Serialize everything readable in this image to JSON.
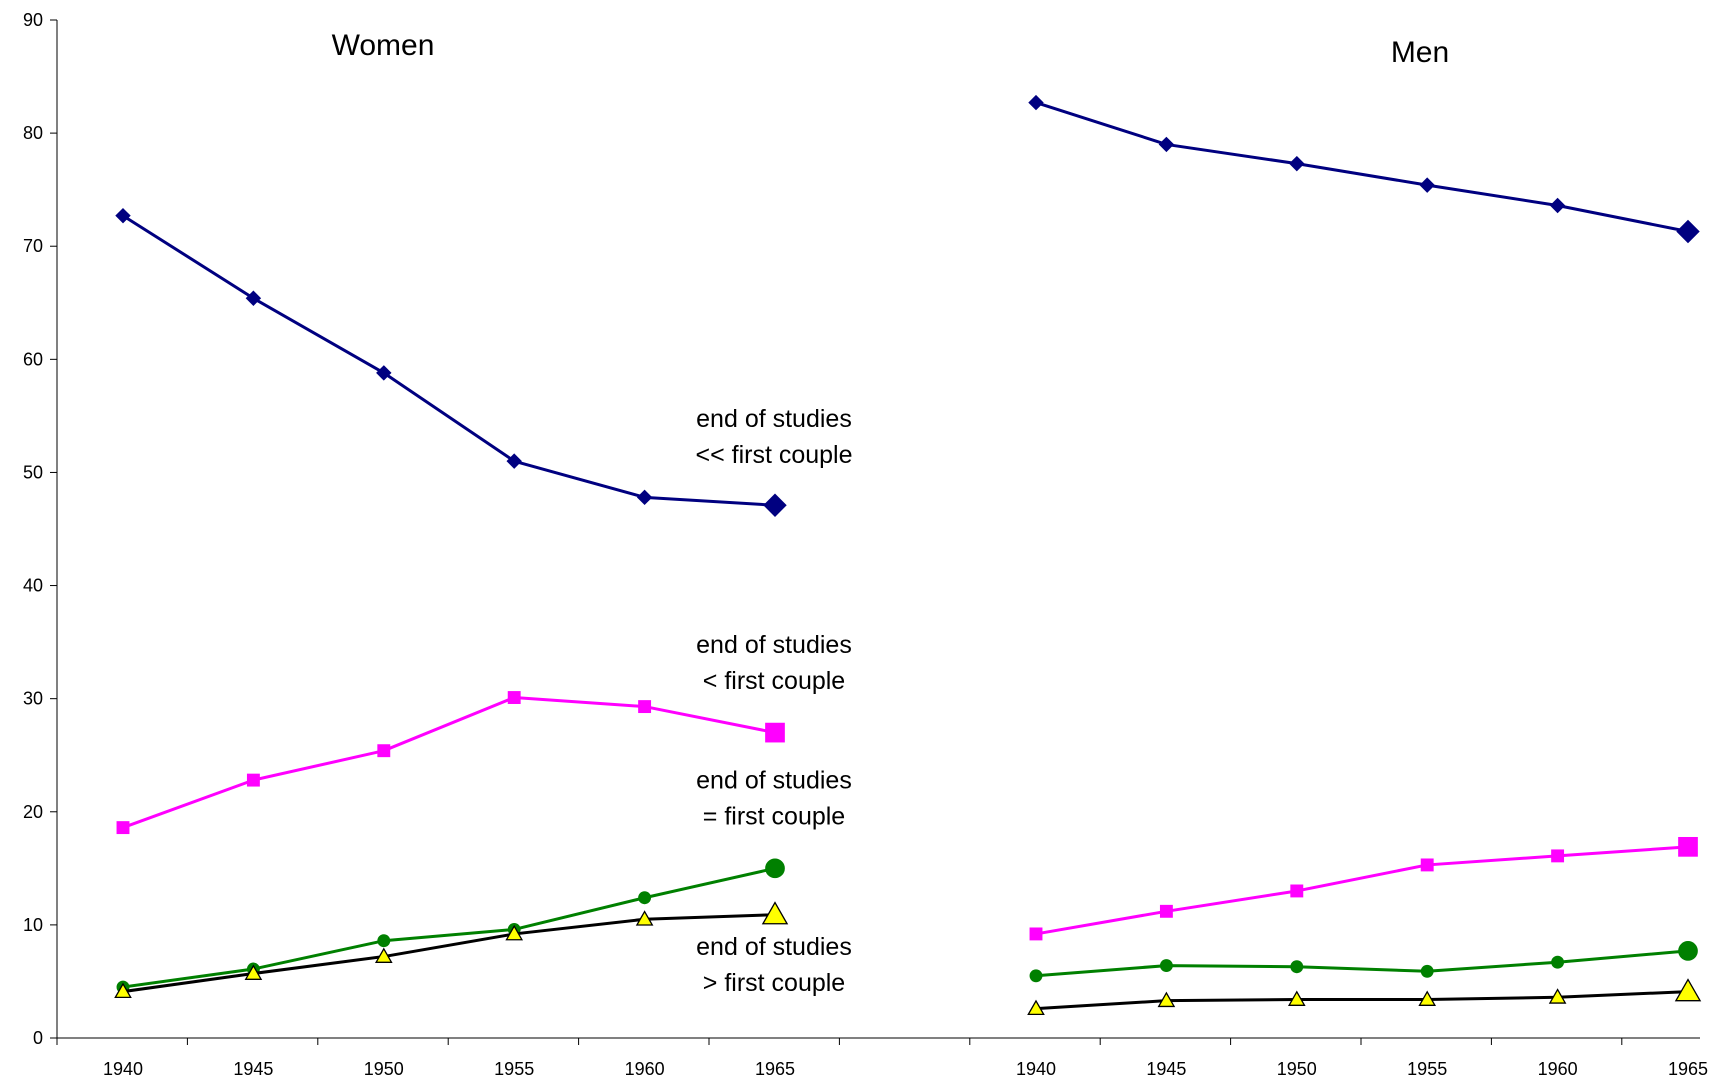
{
  "chart_data": {
    "type": "line",
    "ylim": [
      0,
      90
    ],
    "yticks": [
      0,
      10,
      20,
      30,
      40,
      50,
      60,
      70,
      80,
      90
    ],
    "grid": false,
    "legend": "none",
    "categories": [
      "1940",
      "1945",
      "1950",
      "1955",
      "1960",
      "1965"
    ],
    "panels": [
      {
        "title": "Women",
        "categories": [
          "1940",
          "1945",
          "1950",
          "1955",
          "1960",
          "1965"
        ]
      },
      {
        "title": "Men",
        "categories": [
          "1940",
          "1945",
          "1950",
          "1955",
          "1960",
          "1965"
        ]
      }
    ],
    "series": [
      {
        "color": "#000080",
        "marker": "diamond",
        "marker_fill": "#000080",
        "women": [
          72.7,
          65.4,
          58.8,
          51.0,
          47.8,
          47.1
        ],
        "men": [
          82.7,
          79.0,
          77.3,
          75.4,
          73.6,
          71.3
        ]
      },
      {
        "color": "#ff00ff",
        "marker": "square",
        "marker_fill": "#ff00ff",
        "women": [
          18.6,
          22.8,
          25.4,
          30.1,
          29.3,
          27.0
        ],
        "men": [
          9.2,
          11.2,
          13.0,
          15.3,
          16.1,
          16.9
        ]
      },
      {
        "color": "#008000",
        "marker": "circle",
        "marker_fill": "#008000",
        "women": [
          4.5,
          6.1,
          8.6,
          9.6,
          12.4,
          15.0
        ],
        "men": [
          5.5,
          6.4,
          6.3,
          5.9,
          6.7,
          7.7
        ]
      },
      {
        "color": "#000000",
        "marker": "triangle",
        "marker_fill": "#ffff00",
        "women": [
          4.1,
          5.7,
          7.2,
          9.2,
          10.5,
          10.9
        ],
        "men": [
          2.6,
          3.3,
          3.4,
          3.4,
          3.6,
          4.1
        ]
      }
    ],
    "annotations": [
      {
        "line1": "end of studies",
        "line2": "<< first couple",
        "y": 50.5
      },
      {
        "line1": "end of studies",
        "line2": "< first couple",
        "y": 30.5
      },
      {
        "line1": "end of studies",
        "line2": "= first couple",
        "y": 18.5
      },
      {
        "line1": "end of studies",
        "line2": "> first couple",
        "y": 3.8
      }
    ]
  }
}
